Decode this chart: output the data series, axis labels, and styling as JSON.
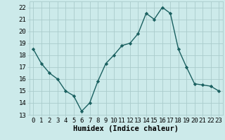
{
  "x": [
    0,
    1,
    2,
    3,
    4,
    5,
    6,
    7,
    8,
    9,
    10,
    11,
    12,
    13,
    14,
    15,
    16,
    17,
    18,
    19,
    20,
    21,
    22,
    23
  ],
  "y": [
    18.5,
    17.3,
    16.5,
    16.0,
    15.0,
    14.6,
    13.3,
    14.0,
    15.8,
    17.3,
    18.0,
    18.8,
    19.0,
    19.8,
    21.5,
    21.0,
    22.0,
    21.5,
    18.5,
    17.0,
    15.6,
    15.5,
    15.4,
    15.0
  ],
  "line_color": "#1a6060",
  "marker": "D",
  "marker_size": 2.2,
  "linewidth": 1.0,
  "background_color": "#cceaea",
  "grid_color": "#aacccc",
  "xlabel": "Humidex (Indice chaleur)",
  "xlabel_fontsize": 7.5,
  "xlim": [
    -0.5,
    23.5
  ],
  "ylim": [
    13,
    22.5
  ],
  "yticks": [
    13,
    14,
    15,
    16,
    17,
    18,
    19,
    20,
    21,
    22
  ],
  "xticks": [
    0,
    1,
    2,
    3,
    4,
    5,
    6,
    7,
    8,
    9,
    10,
    11,
    12,
    13,
    14,
    15,
    16,
    17,
    18,
    19,
    20,
    21,
    22,
    23
  ],
  "tick_fontsize": 6.5
}
